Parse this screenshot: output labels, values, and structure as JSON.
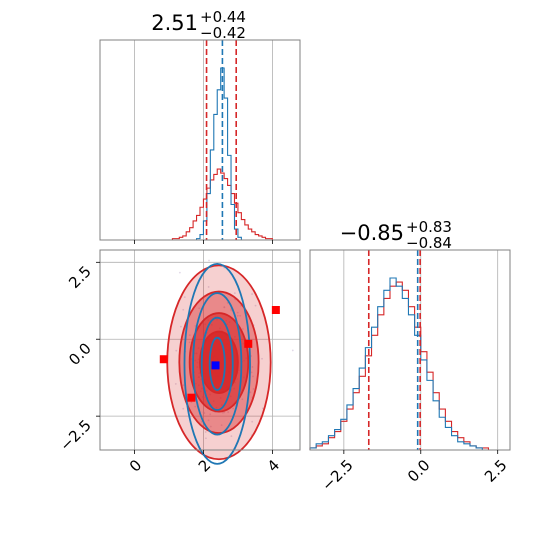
{
  "chart_data": {
    "type": "corner",
    "colors": {
      "red": "#d62728",
      "blue": "#1f77b4",
      "marker_red": "#ff0000",
      "marker_blue": "#0000ff"
    },
    "params": [
      {
        "title_main": "2.51",
        "title_plus": "+0.44",
        "title_minus": "−0.42",
        "median": 2.51,
        "lower": 2.09,
        "upper": 2.95,
        "truth": 2.55,
        "xlim": [
          -1.0,
          4.8
        ]
      },
      {
        "title_main": "−0.85",
        "title_plus": "+0.83",
        "title_minus": "−0.84",
        "median": -0.85,
        "lower": -1.69,
        "upper": -0.02,
        "truth": -0.1,
        "xlim": [
          -3.6,
          2.9
        ]
      }
    ],
    "ticks": {
      "x0": [
        0,
        2,
        4
      ],
      "x0_labels": [
        "0",
        "2",
        "4"
      ],
      "x1": [
        -2.5,
        0.0,
        2.5
      ],
      "x1_labels": [
        "−2.5",
        "0.0",
        "2.5"
      ],
      "y_scatter": [
        2.5,
        0.0,
        -2.5
      ],
      "y_scatter_labels": [
        "2.5",
        "0.0",
        "−2.5"
      ]
    },
    "scatter_ylim": [
      -3.6,
      2.9
    ],
    "hist_param0": {
      "bins": [
        1.0,
        1.1,
        1.2,
        1.3,
        1.4,
        1.5,
        1.6,
        1.7,
        1.8,
        1.9,
        2.0,
        2.1,
        2.2,
        2.3,
        2.4,
        2.5,
        2.6,
        2.7,
        2.8,
        2.9,
        3.0,
        3.1,
        3.2,
        3.3,
        3.4,
        3.5,
        3.6,
        3.7,
        3.8,
        3.9,
        4.0,
        4.1
      ],
      "red": [
        0,
        1,
        1,
        2,
        3,
        6,
        9,
        14,
        18,
        24,
        30,
        38,
        44,
        48,
        52,
        49,
        45,
        40,
        34,
        27,
        20,
        15,
        11,
        8,
        6,
        4,
        3,
        2,
        1,
        1,
        0
      ],
      "blue": [
        0,
        0,
        0,
        0,
        0,
        0,
        0,
        0,
        1,
        4,
        14,
        34,
        66,
        92,
        110,
        126,
        104,
        62,
        26,
        8,
        2,
        0,
        0,
        0,
        0,
        0,
        0,
        0,
        0,
        0,
        0
      ]
    },
    "hist_param1": {
      "bins": [
        -3.6,
        -3.4,
        -3.2,
        -3.0,
        -2.8,
        -2.6,
        -2.4,
        -2.2,
        -2.0,
        -1.8,
        -1.6,
        -1.4,
        -1.2,
        -1.0,
        -0.8,
        -0.6,
        -0.4,
        -0.2,
        0.0,
        0.2,
        0.4,
        0.6,
        0.8,
        1.0,
        1.2,
        1.4,
        1.6,
        1.8,
        2.0,
        2.2,
        2.4,
        2.6,
        2.8
      ],
      "red": [
        1,
        2,
        3,
        6,
        9,
        14,
        20,
        28,
        36,
        46,
        56,
        66,
        74,
        80,
        82,
        78,
        70,
        60,
        48,
        38,
        28,
        20,
        14,
        9,
        6,
        4,
        2,
        1,
        1,
        0,
        0,
        0
      ],
      "blue": [
        1,
        3,
        4,
        7,
        10,
        15,
        22,
        30,
        40,
        50,
        60,
        70,
        78,
        84,
        80,
        74,
        66,
        56,
        44,
        34,
        24,
        16,
        11,
        7,
        4,
        3,
        2,
        1,
        0,
        0,
        0,
        0
      ]
    },
    "scatter_markers": {
      "red": [
        [
          0.85,
          -0.65
        ],
        [
          1.65,
          -1.9
        ],
        [
          3.3,
          -0.15
        ],
        [
          4.1,
          0.95
        ]
      ],
      "blue": [
        [
          2.35,
          -0.85
        ]
      ]
    },
    "contours": {
      "red": {
        "cx": 2.45,
        "cy": -0.75,
        "levels": [
          [
            1.5,
            3.15
          ],
          [
            1.15,
            2.3
          ],
          [
            0.85,
            1.6
          ],
          [
            0.55,
            1.0
          ]
        ]
      },
      "blue": {
        "cx": 2.4,
        "cy": -0.8,
        "levels": [
          [
            0.95,
            3.25
          ],
          [
            0.7,
            2.3
          ],
          [
            0.45,
            1.5
          ],
          [
            0.22,
            0.85
          ]
        ]
      }
    }
  }
}
